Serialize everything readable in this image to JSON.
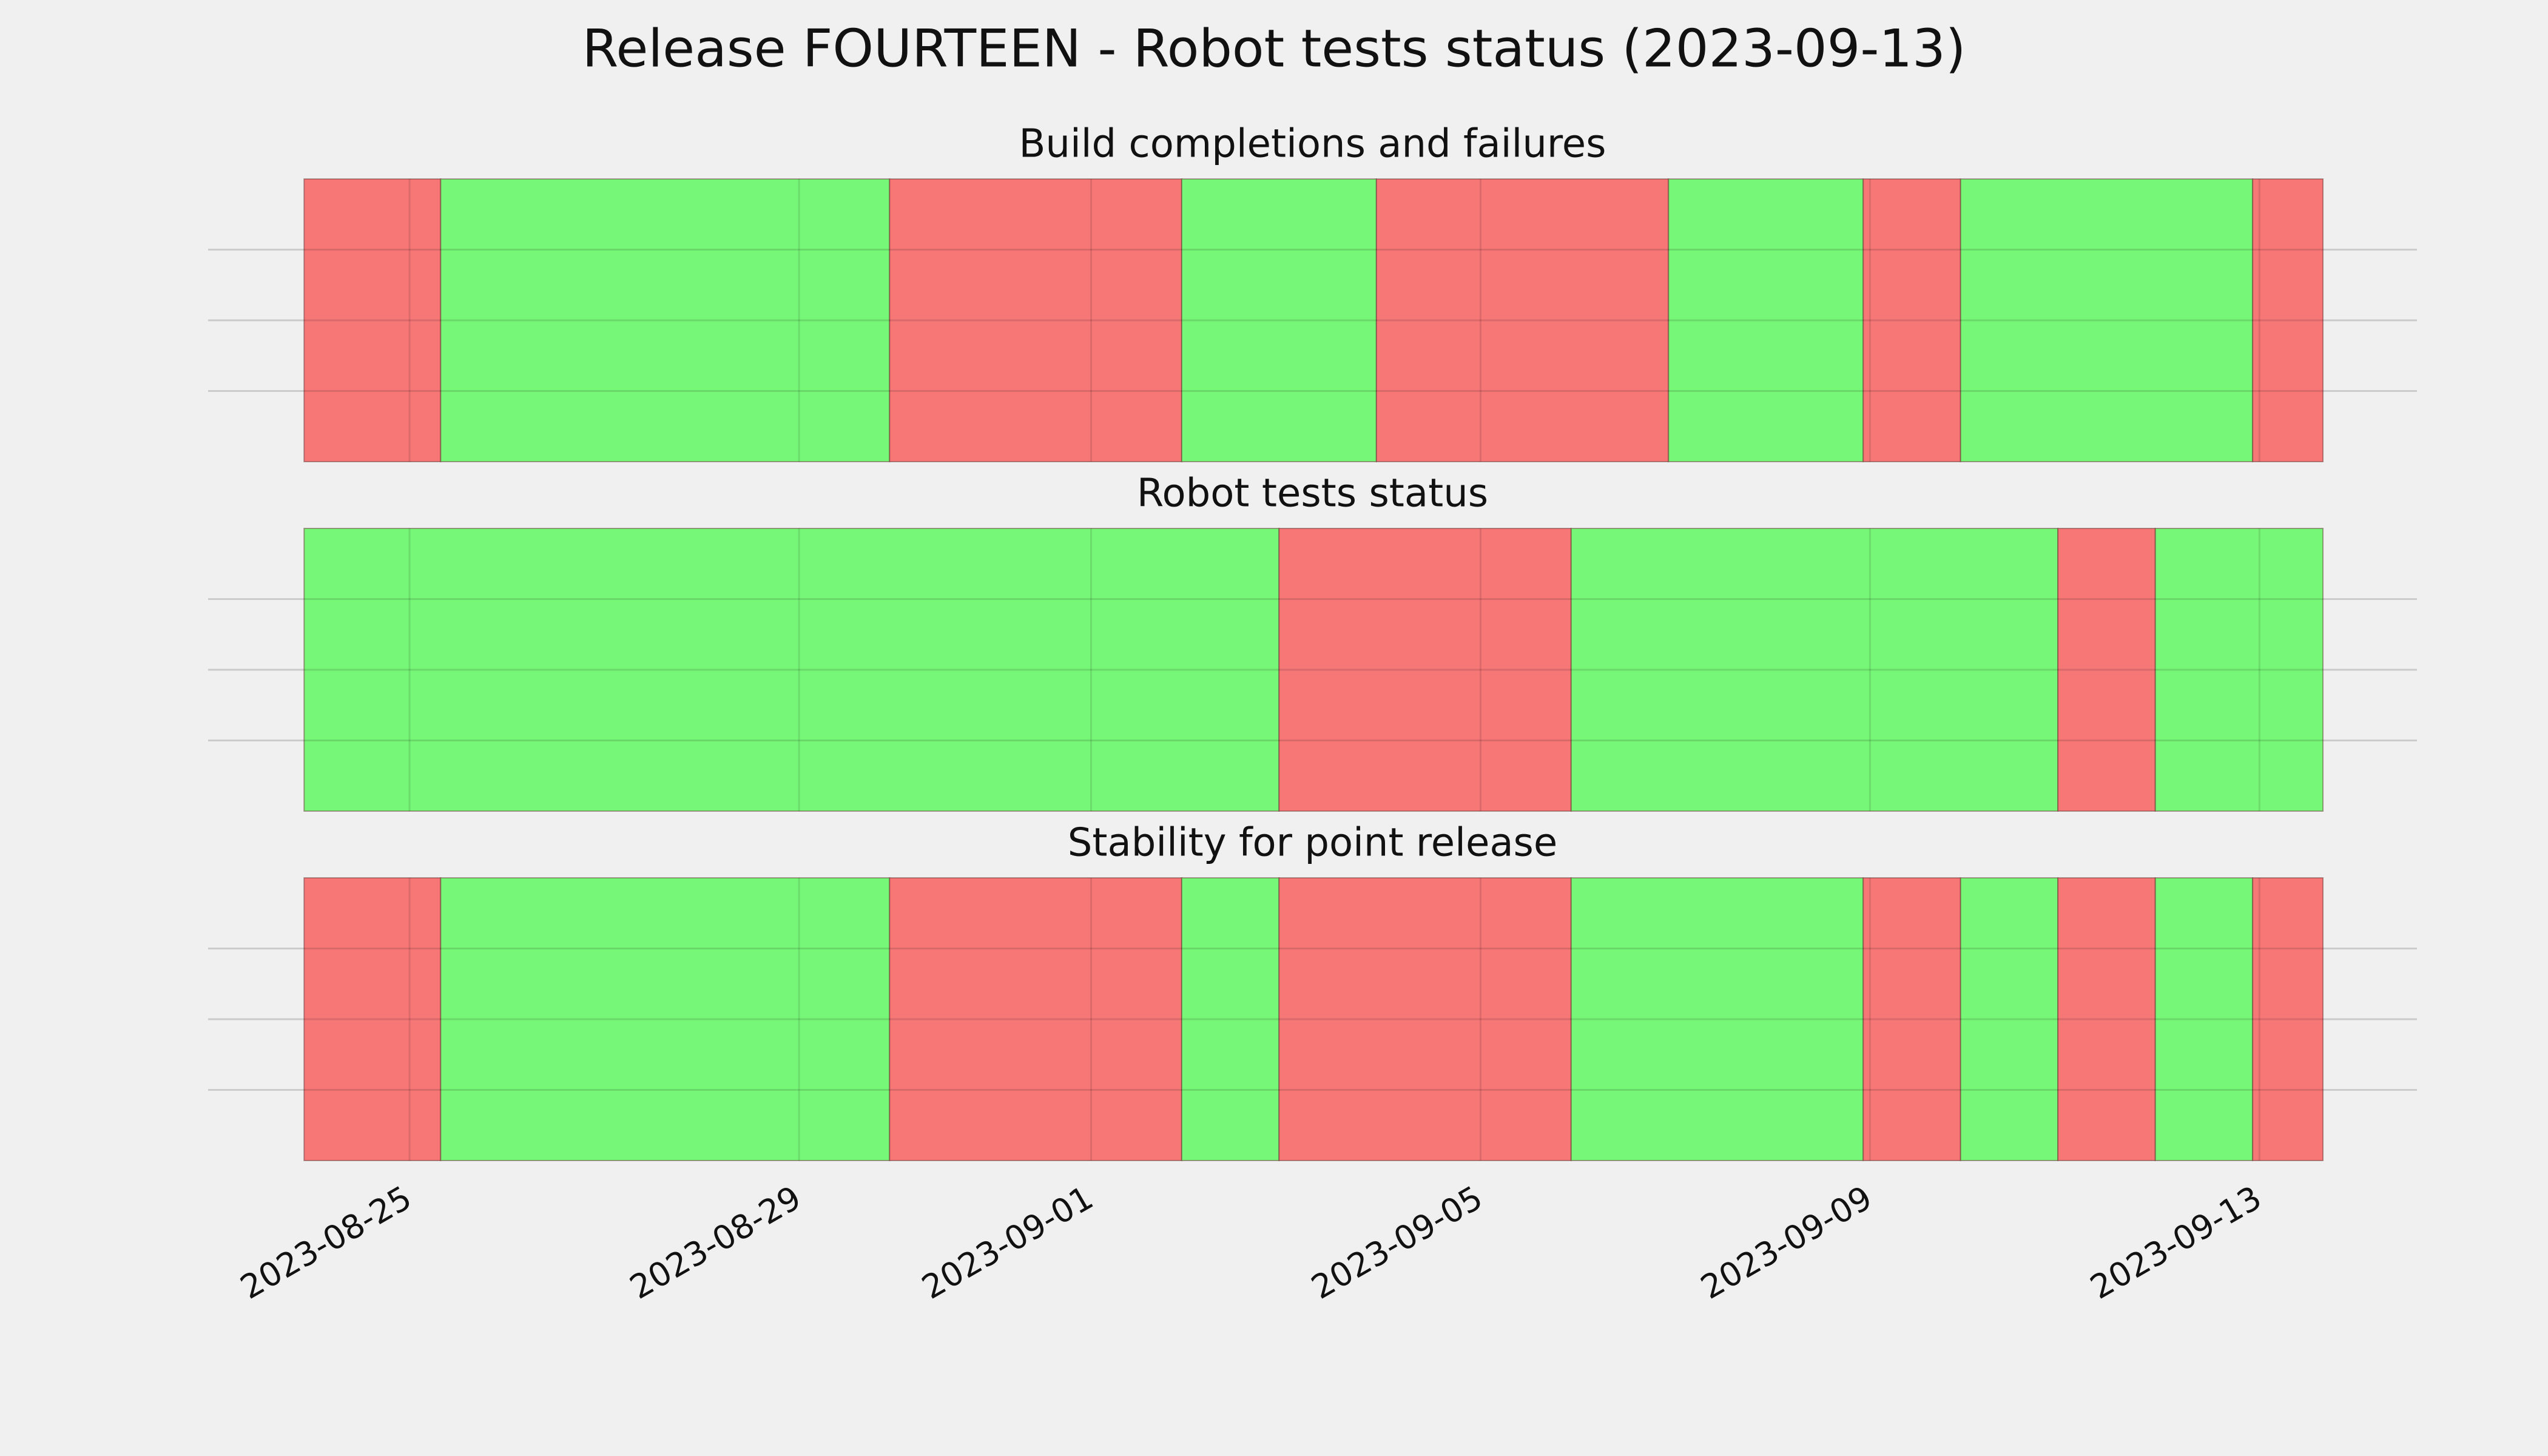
{
  "title": "Release FOURTEEN - Robot tests status (2023-09-13)",
  "chart_data": [
    {
      "type": "timeline",
      "title": "Build completions and failures",
      "x": [
        "2023-08-23T22:00",
        "2023-08-25T07:40",
        "2023-08-29T22:20",
        "2023-09-01T22:20",
        "2023-09-03T22:20",
        "2023-09-06T22:20",
        "2023-09-08T22:20",
        "2023-09-09T22:20",
        "2023-09-12T22:20",
        "2023-09-13T15:40"
      ],
      "colors": [
        "#f77777",
        "#77f777",
        "#f77777",
        "#77f777",
        "#f77777",
        "#77f777",
        "#f77777",
        "#77f777",
        "#f77777"
      ],
      "xlim": [
        "2023-08-22T22:20",
        "2023-09-14T14:50"
      ],
      "xticks": [
        "2023-08-25",
        "2023-08-29",
        "2023-09-01",
        "2023-09-05",
        "2023-09-09",
        "2023-09-13"
      ],
      "ylim": [
        0,
        1
      ],
      "yticks": [
        0.25,
        0.5,
        0.75
      ],
      "grid": true
    },
    {
      "type": "timeline",
      "title": "Robot tests status",
      "x": [
        "2023-08-23T22:00",
        "2023-09-02T22:20",
        "2023-09-05T22:20",
        "2023-09-10T22:20",
        "2023-09-11T22:20",
        "2023-09-13T15:40"
      ],
      "colors": [
        "#77f777",
        "#f77777",
        "#77f777",
        "#f77777",
        "#77f777"
      ],
      "xlim": [
        "2023-08-22T22:20",
        "2023-09-14T14:50"
      ],
      "xticks": [
        "2023-08-25",
        "2023-08-29",
        "2023-09-01",
        "2023-09-05",
        "2023-09-09",
        "2023-09-13"
      ],
      "ylim": [
        0,
        1
      ],
      "yticks": [
        0.25,
        0.5,
        0.75
      ],
      "grid": true
    },
    {
      "type": "timeline",
      "title": "Stability for point release",
      "x": [
        "2023-08-23T22:00",
        "2023-08-25T07:40",
        "2023-08-29T22:20",
        "2023-09-01T22:20",
        "2023-09-02T22:20",
        "2023-09-05T22:20",
        "2023-09-08T22:20",
        "2023-09-09T22:20",
        "2023-09-10T22:20",
        "2023-09-11T22:20",
        "2023-09-12T22:20",
        "2023-09-13T15:40"
      ],
      "colors": [
        "#f77777",
        "#77f777",
        "#f77777",
        "#77f777",
        "#f77777",
        "#77f777",
        "#f77777",
        "#77f777",
        "#f77777",
        "#77f777",
        "#f77777"
      ],
      "xlim": [
        "2023-08-22T22:20",
        "2023-09-14T14:50"
      ],
      "xticks": [
        "2023-08-25",
        "2023-08-29",
        "2023-09-01",
        "2023-09-05",
        "2023-09-09",
        "2023-09-13"
      ],
      "ylim": [
        0,
        1
      ],
      "yticks": [
        0.25,
        0.5,
        0.75
      ],
      "grid": true,
      "show_xtick_labels": true
    }
  ]
}
